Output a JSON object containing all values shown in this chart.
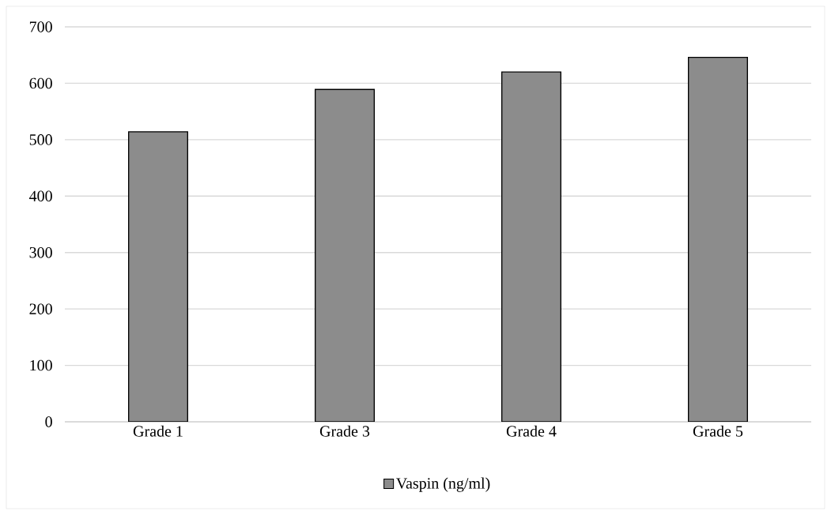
{
  "chart_data": {
    "type": "bar",
    "categories": [
      "Grade 1",
      "Grade 3",
      "Grade 4",
      "Grade 5"
    ],
    "series": [
      {
        "name": "Vaspin (ng/ml)",
        "color": "#8c8c8c",
        "values": [
          514,
          589,
          620,
          646
        ]
      }
    ],
    "ylim": [
      0,
      700
    ],
    "yticks": [
      0,
      100,
      200,
      300,
      400,
      500,
      600,
      700
    ],
    "grid": "y",
    "legend": "bottom"
  }
}
